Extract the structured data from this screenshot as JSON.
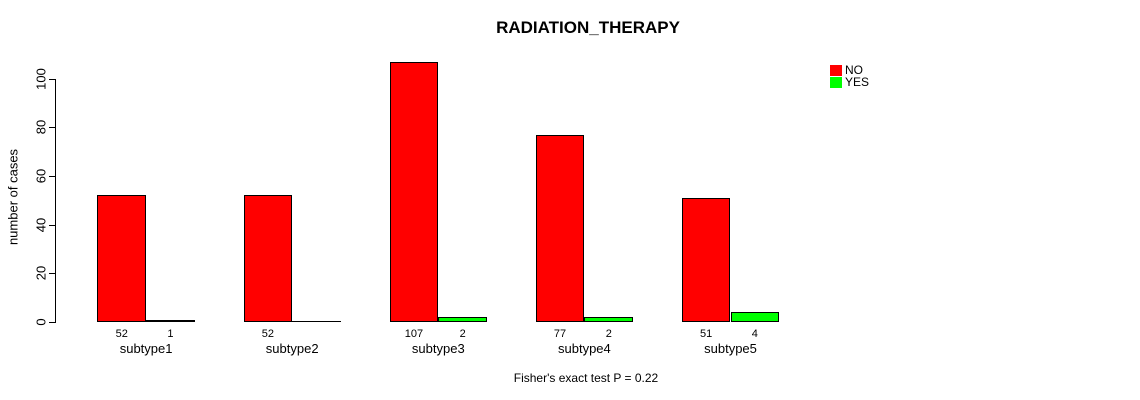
{
  "chart_data": {
    "type": "bar",
    "title": "RADIATION_THERAPY",
    "ylabel": "number of cases",
    "xlabel": "",
    "categories": [
      "subtype1",
      "subtype2",
      "subtype3",
      "subtype4",
      "subtype5"
    ],
    "series": [
      {
        "name": "NO",
        "color": "#FF0000",
        "values": [
          52,
          52,
          107,
          77,
          51
        ]
      },
      {
        "name": "YES",
        "color": "#00FF00",
        "values": [
          1,
          0,
          2,
          2,
          4
        ]
      }
    ],
    "bar_value_labels_shown": [
      "52",
      "1",
      "52",
      "",
      "107",
      "2",
      "77",
      "2",
      "51",
      "4"
    ],
    "y_axis": {
      "min": 0,
      "max": 100,
      "tick_step": 20,
      "ticks": [
        0,
        20,
        40,
        60,
        80,
        100
      ]
    },
    "legend": {
      "position": "top-right",
      "entries": [
        "NO",
        "YES"
      ]
    },
    "annotation": "Fisher's exact test P = 0.22",
    "grid": false,
    "background": "#ffffff"
  }
}
